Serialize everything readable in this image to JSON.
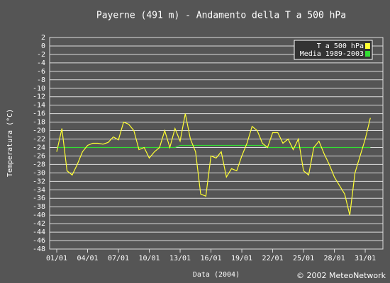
{
  "chart_data": {
    "type": "line",
    "title": "Payerne (491 m) - Andamento della T a 500 hPa",
    "x_label": "Data (2004)",
    "y_label": "Temperatura (°C)",
    "credit": "© 2002 MeteoNetwork",
    "x": [
      1,
      1.5,
      2,
      2.5,
      3,
      3.5,
      4,
      4.5,
      5,
      5.5,
      6,
      6.5,
      7,
      7.5,
      8,
      8.5,
      9,
      9.5,
      10,
      10.5,
      11,
      11.5,
      12,
      12.5,
      13,
      13.5,
      14,
      14.5,
      15,
      15.5,
      16,
      16.5,
      17,
      17.5,
      18,
      18.5,
      19,
      19.5,
      20,
      20.5,
      21,
      21.5,
      22,
      22.5,
      23,
      23.5,
      24,
      24.5,
      25,
      25.5,
      26,
      26.5,
      27,
      27.5,
      28,
      28.5,
      29,
      29.5,
      30,
      30.5,
      31,
      31.5
    ],
    "series": [
      {
        "name": "T a 500 hPa",
        "color": "#ffff33",
        "values": [
          -25,
          -19.5,
          -29.5,
          -30.5,
          -28,
          -25,
          -23.5,
          -23,
          -23,
          -23.2,
          -22.8,
          -21.5,
          -22.2,
          -18,
          -18.5,
          -20,
          -24.5,
          -24,
          -26.5,
          -25,
          -24,
          -20,
          -24,
          -19.5,
          -22.5,
          -16,
          -22,
          -25,
          -35,
          -35.5,
          -26,
          -26.5,
          -25,
          -31,
          -29,
          -29.5,
          -26,
          -23,
          -19,
          -20,
          -23,
          -24,
          -20.5,
          -20.5,
          -23,
          -22,
          -24.5,
          -22,
          -29.5,
          -30.5,
          -24,
          -22.5,
          -25.5,
          -28,
          -31,
          -33,
          -35,
          -40,
          -30,
          -26,
          -22,
          -17
        ]
      },
      {
        "name": "Media 1989-2003",
        "color": "#33dd33",
        "values": [
          -24,
          -24,
          -24,
          -24,
          -24,
          -24,
          -24,
          -24,
          -24,
          -24,
          -24,
          -24,
          -24,
          -24,
          -24,
          -24,
          -24,
          -24,
          -24,
          -24,
          -24,
          -24,
          -24,
          -24,
          -23.5,
          -23.5,
          -23.5,
          -23.5,
          -23.5,
          -23.5,
          -23.5,
          -23.5,
          -23.5,
          -23.5,
          -23.5,
          -23.5,
          -23.5,
          -23.5,
          -23.5,
          -23.5,
          -23.5,
          -24,
          -24,
          -24,
          -24,
          -24,
          -24,
          -24,
          -24,
          -24,
          -24,
          -24,
          -24,
          -24,
          -24,
          -24,
          -24,
          -24,
          -24,
          -24,
          -24,
          -24
        ]
      }
    ],
    "xlim": [
      0.31,
      32.72
    ],
    "xticks": [
      {
        "value": 1,
        "label": "01/01"
      },
      {
        "value": 4,
        "label": "04/01"
      },
      {
        "value": 7,
        "label": "07/01"
      },
      {
        "value": 10,
        "label": "10/01"
      },
      {
        "value": 13,
        "label": "13/01"
      },
      {
        "value": 16,
        "label": "16/01"
      },
      {
        "value": 19,
        "label": "19/01"
      },
      {
        "value": 22,
        "label": "22/01"
      },
      {
        "value": 25,
        "label": "25/01"
      },
      {
        "value": 28,
        "label": "28/01"
      },
      {
        "value": 31,
        "label": "31/01"
      }
    ],
    "ylim": [
      -48,
      2
    ],
    "yticks": [
      2,
      0,
      -2,
      -4,
      -6,
      -8,
      -10,
      -12,
      -14,
      -16,
      -18,
      -20,
      -22,
      -24,
      -26,
      -28,
      -30,
      -32,
      -34,
      -36,
      -38,
      -40,
      -42,
      -44,
      -46,
      -48
    ],
    "grid": true,
    "legend": "top-right"
  }
}
